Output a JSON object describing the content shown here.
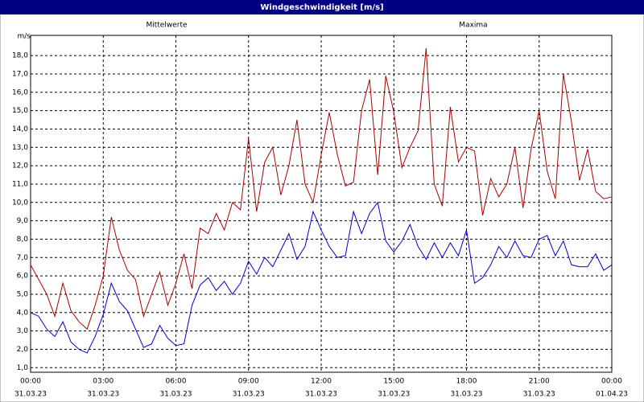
{
  "chart_data": {
    "type": "line",
    "title": "Windgeschwindigkeit [m/s]",
    "y_label": "m/s",
    "xlim": [
      0,
      1440
    ],
    "xticks": [
      {
        "value": 0,
        "label": "00:00",
        "date": "31.03.23"
      },
      {
        "value": 180,
        "label": "03:00",
        "date": "31.03.23"
      },
      {
        "value": 360,
        "label": "06:00",
        "date": "31.03.23"
      },
      {
        "value": 540,
        "label": "09:00",
        "date": "31.03.23"
      },
      {
        "value": 720,
        "label": "12:00",
        "date": "31.03.23"
      },
      {
        "value": 900,
        "label": "15:00",
        "date": "31.03.23"
      },
      {
        "value": 1080,
        "label": "18:00",
        "date": "31.03.23"
      },
      {
        "value": 1260,
        "label": "21:00",
        "date": "31.03.23"
      },
      {
        "value": 1440,
        "label": "00:00",
        "date": "01.04.23"
      }
    ],
    "ylim": [
      0.75,
      19.1
    ],
    "yticks": [
      {
        "value": 1,
        "label": "1,0"
      },
      {
        "value": 2,
        "label": "2,0"
      },
      {
        "value": 3,
        "label": "3,0"
      },
      {
        "value": 4,
        "label": "4,0"
      },
      {
        "value": 5,
        "label": "5,0"
      },
      {
        "value": 6,
        "label": "6,0"
      },
      {
        "value": 7,
        "label": "7,0"
      },
      {
        "value": 8,
        "label": "8,0"
      },
      {
        "value": 9,
        "label": "9,0"
      },
      {
        "value": 10,
        "label": "10,0"
      },
      {
        "value": 11,
        "label": "11,0"
      },
      {
        "value": 12,
        "label": "12,0"
      },
      {
        "value": 13,
        "label": "13,0"
      },
      {
        "value": 14,
        "label": "14,0"
      },
      {
        "value": 15,
        "label": "15,0"
      },
      {
        "value": 16,
        "label": "16,0"
      },
      {
        "value": 17,
        "label": "17,0"
      },
      {
        "value": 18,
        "label": "18,0"
      }
    ],
    "grid": true,
    "x": [
      0,
      20,
      40,
      60,
      80,
      100,
      120,
      140,
      160,
      180,
      200,
      220,
      240,
      260,
      280,
      300,
      320,
      340,
      360,
      380,
      400,
      420,
      440,
      460,
      480,
      500,
      520,
      540,
      560,
      580,
      600,
      620,
      640,
      660,
      680,
      700,
      720,
      740,
      760,
      780,
      800,
      820,
      840,
      860,
      880,
      900,
      920,
      940,
      960,
      980,
      1000,
      1020,
      1040,
      1060,
      1080,
      1100,
      1120,
      1140,
      1160,
      1180,
      1200,
      1220,
      1240,
      1260,
      1280,
      1300,
      1320,
      1340,
      1360,
      1380,
      1400,
      1420,
      1440
    ],
    "series": [
      {
        "name": "Mittelwerte",
        "color": "#0000cc",
        "values": [
          4.0,
          3.8,
          3.1,
          2.7,
          3.5,
          2.4,
          2.0,
          1.8,
          2.7,
          3.9,
          5.6,
          4.6,
          4.1,
          3.1,
          2.1,
          2.3,
          3.3,
          2.6,
          2.2,
          2.3,
          4.4,
          5.5,
          5.9,
          5.2,
          5.7,
          5.0,
          5.6,
          6.8,
          6.1,
          7.0,
          6.5,
          7.4,
          8.3,
          6.9,
          7.6,
          9.5,
          8.5,
          7.6,
          7.0,
          7.1,
          9.5,
          8.3,
          9.4,
          10.0,
          7.9,
          7.3,
          7.9,
          8.8,
          7.6,
          6.9,
          7.8,
          7.0,
          7.8,
          7.1,
          8.5,
          5.6,
          5.9,
          6.6,
          7.6,
          7.0,
          7.9,
          7.1,
          7.0,
          8.0,
          8.2,
          7.1,
          7.9,
          6.6,
          6.5,
          6.5,
          7.2,
          6.3,
          6.6
        ]
      },
      {
        "name": "Maxima",
        "color": "#aa0000",
        "values": [
          6.6,
          5.8,
          5.0,
          3.8,
          5.6,
          4.1,
          3.5,
          3.1,
          4.4,
          6.0,
          9.2,
          7.4,
          6.3,
          5.8,
          3.8,
          5.0,
          6.2,
          4.4,
          5.6,
          7.2,
          5.3,
          8.6,
          8.3,
          9.4,
          8.5,
          10.0,
          9.6,
          13.5,
          9.5,
          12.2,
          13.0,
          10.4,
          12.0,
          14.5,
          11.0,
          10.0,
          12.6,
          14.9,
          12.6,
          10.9,
          11.1,
          15.0,
          16.7,
          11.5,
          16.9,
          14.9,
          11.9,
          13.0,
          13.9,
          18.4,
          11.0,
          9.8,
          15.2,
          12.2,
          13.0,
          12.8,
          9.3,
          11.3,
          10.3,
          11.0,
          13.0,
          9.7,
          12.9,
          15.0,
          11.7,
          10.2,
          17.0,
          14.4,
          11.2,
          12.9,
          10.6,
          10.2,
          10.3
        ]
      }
    ]
  }
}
